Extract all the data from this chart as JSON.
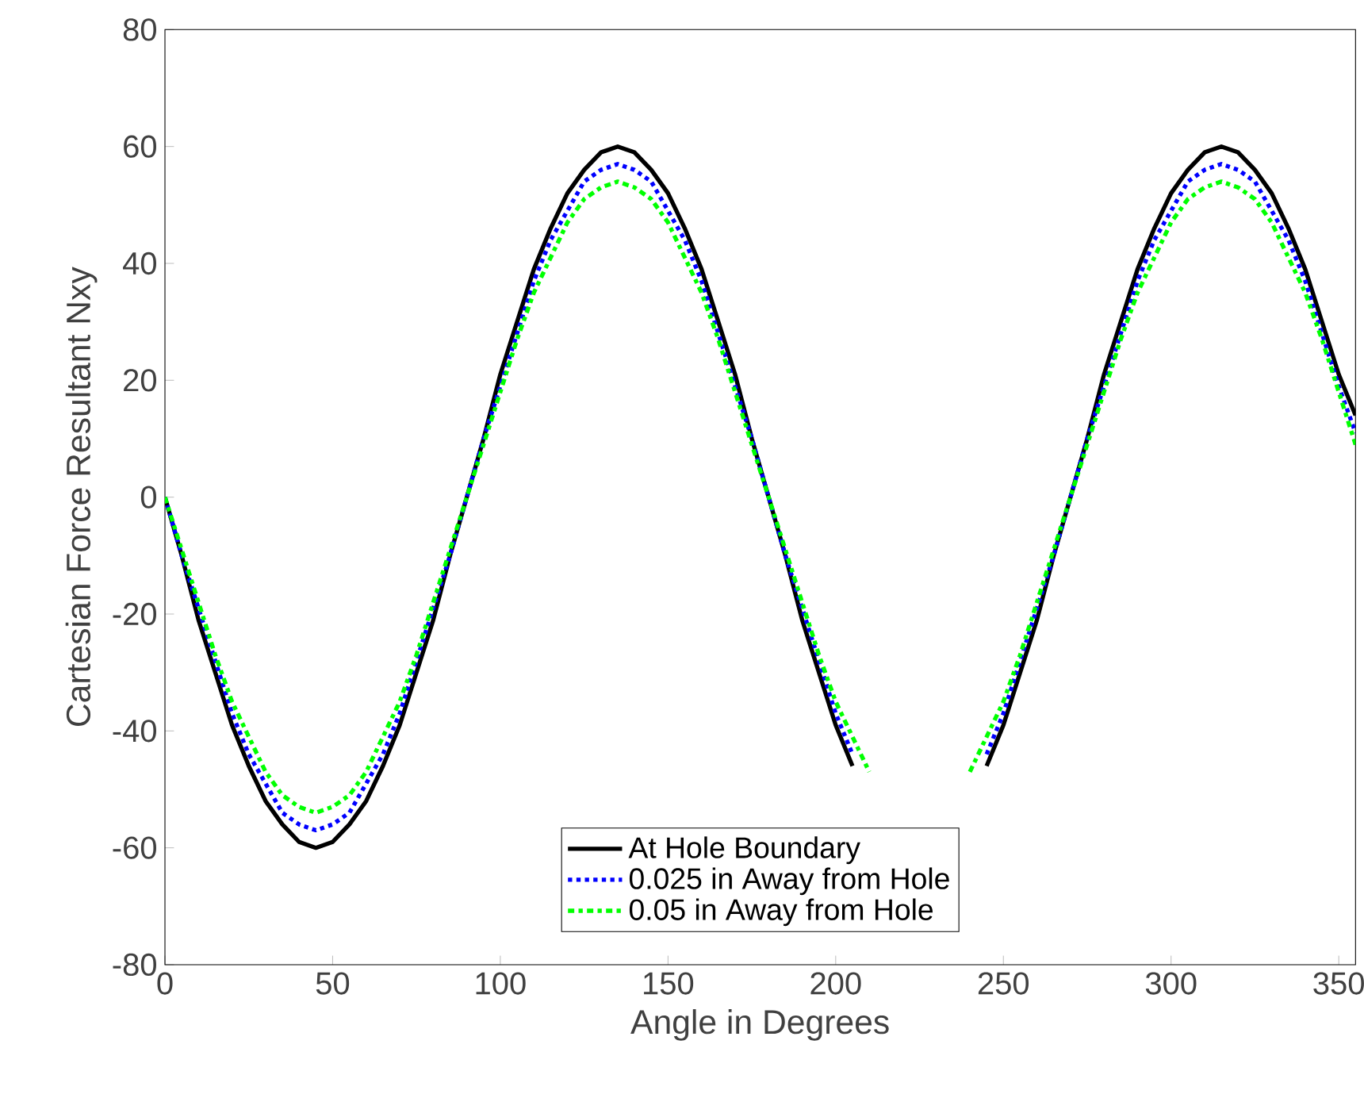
{
  "chart_data": {
    "type": "line",
    "xlabel": "Angle in Degrees",
    "ylabel": "Cartesian Force Resultant Nxy",
    "x": [
      0,
      5,
      10,
      15,
      20,
      25,
      30,
      35,
      40,
      45,
      50,
      55,
      60,
      65,
      70,
      75,
      80,
      85,
      90,
      95,
      100,
      105,
      110,
      115,
      120,
      125,
      130,
      135,
      140,
      145,
      150,
      155,
      160,
      165,
      170,
      175,
      180,
      185,
      190,
      195,
      200,
      205,
      210,
      215,
      220,
      225,
      230,
      235,
      240,
      245,
      250,
      255,
      260,
      265,
      270,
      275,
      280,
      285,
      290,
      295,
      300,
      305,
      310,
      315,
      320,
      325,
      330,
      335,
      340,
      345,
      350,
      355
    ],
    "series": [
      {
        "name": "At Hole Boundary",
        "color": "#000000",
        "line_style": "solid",
        "values": [
          0,
          -10,
          -21,
          -30,
          -39,
          -46,
          -52,
          -56,
          -59,
          -60,
          -59,
          -56,
          -52,
          -46,
          -39,
          -30,
          -21,
          -10,
          0,
          10,
          21,
          30,
          39,
          46,
          52,
          56,
          59,
          60,
          59,
          56,
          52,
          46,
          39,
          30,
          21,
          10,
          0,
          -10,
          -21,
          -30,
          -39,
          -46,
          null,
          null,
          null,
          null,
          null,
          null,
          null,
          -46,
          -39,
          -30,
          -21,
          -10,
          0,
          10,
          21,
          30,
          39,
          46,
          52,
          56,
          59,
          60,
          59,
          56,
          52,
          46,
          39,
          30,
          21,
          14
        ]
      },
      {
        "name": "0.025 in Away from Hole",
        "color": "#0000ff",
        "line_style": "dotted",
        "values": [
          0,
          -10,
          -19,
          -28,
          -37,
          -44,
          -49,
          -54,
          -56,
          -57,
          -56,
          -54,
          -49,
          -44,
          -37,
          -28,
          -19,
          -10,
          0,
          10,
          19,
          28,
          37,
          44,
          49,
          54,
          56,
          57,
          56,
          54,
          49,
          44,
          37,
          28,
          19,
          10,
          0,
          -10,
          -19,
          -28,
          -37,
          -44,
          null,
          null,
          null,
          null,
          null,
          null,
          null,
          -44,
          -37,
          -28,
          -19,
          -10,
          0,
          10,
          19,
          28,
          37,
          44,
          49,
          54,
          56,
          57,
          56,
          54,
          49,
          44,
          37,
          28,
          19,
          11
        ]
      },
      {
        "name": "0.05 in Away from Hole",
        "color": "#00ff00",
        "line_style": "dashdot",
        "values": [
          0,
          -9,
          -18,
          -27,
          -35,
          -41,
          -47,
          -51,
          -53,
          -54,
          -53,
          -51,
          -47,
          -41,
          -35,
          -27,
          -18,
          -9,
          0,
          9,
          18,
          27,
          35,
          41,
          47,
          51,
          53,
          54,
          53,
          51,
          47,
          41,
          35,
          27,
          18,
          9,
          0,
          -9,
          -18,
          -27,
          -35,
          -41,
          -47,
          null,
          null,
          null,
          null,
          null,
          -47,
          -41,
          -35,
          -27,
          -18,
          -9,
          0,
          9,
          18,
          27,
          35,
          41,
          47,
          51,
          53,
          54,
          53,
          51,
          47,
          41,
          35,
          27,
          18,
          9
        ]
      }
    ],
    "xlim": [
      0,
      355
    ],
    "ylim": [
      -80,
      80
    ],
    "xticks": [
      0,
      50,
      100,
      150,
      200,
      250,
      300,
      350
    ],
    "yticks": [
      -80,
      -60,
      -40,
      -20,
      0,
      20,
      40,
      60,
      80
    ],
    "legend": "bottom",
    "grid": false,
    "marker": "none"
  }
}
